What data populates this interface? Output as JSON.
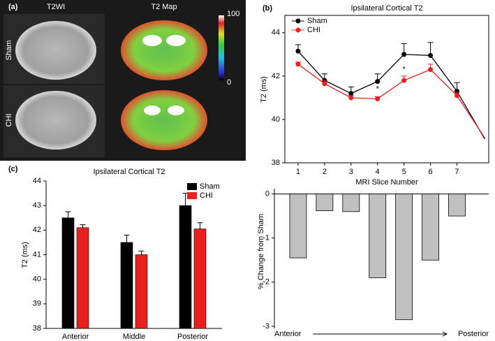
{
  "panel_a": {
    "label": "(a)",
    "columns": [
      "T2WI",
      "T2 Map"
    ],
    "rows": [
      "Sham",
      "CHI"
    ],
    "colorbar_ticks": [
      100,
      0
    ]
  },
  "chart_data": [
    {
      "type": "line",
      "label": "(b)",
      "title": "Ipsilateral Cortical T2",
      "xlabel": "MRI Slice Number",
      "ylabel": "T2 (ms)",
      "x": [
        1,
        2,
        3,
        4,
        5,
        6,
        7,
        8.05
      ],
      "xlim": [
        0.5,
        8.2
      ],
      "xticks": [
        1,
        2,
        3,
        4,
        5,
        6,
        7
      ],
      "ylim": [
        38,
        44.8
      ],
      "yticks": [
        38,
        40,
        42,
        44
      ],
      "legend": "upper left",
      "series": [
        {
          "name": "Sham",
          "color": "#000000",
          "values": [
            43.15,
            41.8,
            41.2,
            41.75,
            43.0,
            42.95,
            41.3,
            39.1
          ],
          "errors": [
            0.3,
            0.3,
            0.3,
            0.35,
            0.5,
            0.6,
            0.4,
            null
          ]
        },
        {
          "name": "CHI",
          "color": "#e8201e",
          "values": [
            42.55,
            41.65,
            41.0,
            40.95,
            41.8,
            42.3,
            41.1,
            39.15
          ],
          "errors": [
            0.1,
            0.15,
            0.1,
            0.1,
            0.2,
            0.25,
            0.15,
            null
          ]
        }
      ],
      "annotations": [
        {
          "x": 4,
          "y": 41.4,
          "text": "*"
        },
        {
          "x": 5,
          "y": 42.3,
          "text": "*"
        }
      ]
    },
    {
      "type": "bar",
      "ylabel": "% Change from Sham",
      "x": [
        1,
        2,
        3,
        4,
        5,
        6,
        7
      ],
      "xlim": [
        0.5,
        8.2
      ],
      "ylim": [
        -3.05,
        0.12
      ],
      "yticks": [
        0,
        -1,
        -2,
        -3
      ],
      "values": [
        -1.45,
        -0.38,
        -0.4,
        -1.9,
        -2.85,
        -1.5,
        -0.5
      ],
      "color": "#c0c0c0",
      "annotations": [
        {
          "text": "Anterior"
        },
        {
          "text": "Posterior"
        }
      ]
    },
    {
      "type": "grouped_bar",
      "label": "(c)",
      "title": "Ipsilateral Cortical T2",
      "ylabel": "T2 (ms)",
      "categories": [
        "Anterior",
        "Middle",
        "Posterior"
      ],
      "ylim": [
        38,
        44
      ],
      "yticks": [
        38,
        39,
        40,
        41,
        42,
        43,
        44
      ],
      "legend": "upper right",
      "series": [
        {
          "name": "Sham",
          "color": "#000000",
          "values": [
            42.5,
            41.5,
            43.0
          ],
          "errors": [
            0.25,
            0.3,
            0.5
          ]
        },
        {
          "name": "CHI",
          "color": "#e8201e",
          "values": [
            42.1,
            41.0,
            42.05
          ],
          "errors": [
            0.12,
            0.15,
            0.25
          ]
        }
      ]
    }
  ]
}
